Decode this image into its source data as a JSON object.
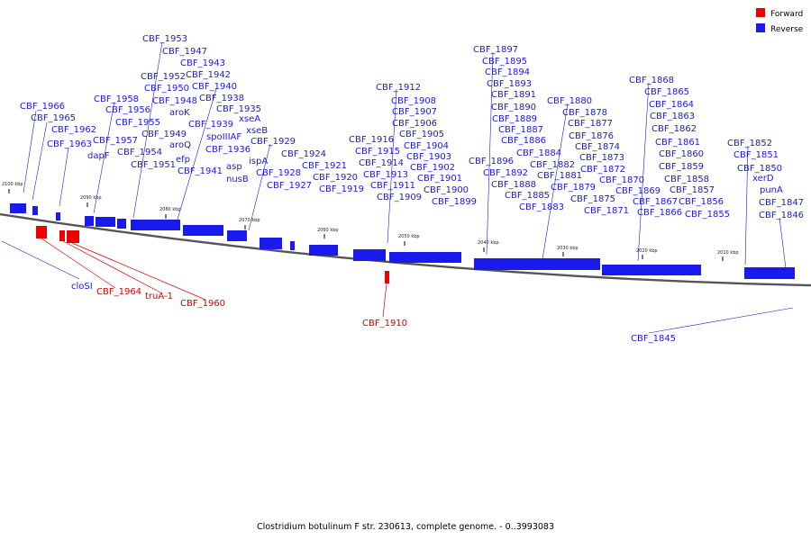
{
  "caption": "Clostridium botulinum F str. 230613, complete genome. - 0..3993083",
  "legend": [
    {
      "label": "Forward",
      "color": "#ee0000"
    },
    {
      "label": "Reverse",
      "color": "#1a1aee"
    }
  ],
  "ticks": [
    "2100 kbp",
    "2090 kbp",
    "2080 kbp",
    "2070 kbp",
    "2060 kbp",
    "2050 kbp",
    "2040 kbp",
    "2030 kbp",
    "2020 kbp",
    "2010 kbp"
  ],
  "reverse_labels": [
    "CBF_1966",
    "CBF_1965",
    "CBF_1962",
    "CBF_1963",
    "CBF_1958",
    "CBF_1956",
    "CBF_1955",
    "CBF_1957",
    "dapF",
    "CBF_1954",
    "CBF_1951",
    "CBF_1953",
    "CBF_1947",
    "CBF_1943",
    "CBF_1952",
    "CBF_1942",
    "CBF_1950",
    "CBF_1940",
    "CBF_1948",
    "CBF_1938",
    "aroK",
    "CBF_1935",
    "CBF_1949",
    "CBF_1939",
    "aroQ",
    "efp",
    "spoIIIAF",
    "CBF_1936",
    "CBF_1941",
    "asp",
    "nusB",
    "xseA",
    "xseB",
    "ispA",
    "CBF_1929",
    "CBF_1928",
    "CBF_1927",
    "CBF_1924",
    "CBF_1921",
    "CBF_1920",
    "CBF_1919",
    "CBF_1916",
    "CBF_1915",
    "CBF_1914",
    "CBF_1913",
    "CBF_1911",
    "CBF_1909",
    "CBF_1912",
    "CBF_1908",
    "CBF_1907",
    "CBF_1906",
    "CBF_1905",
    "CBF_1904",
    "CBF_1903",
    "CBF_1902",
    "CBF_1901",
    "CBF_1900",
    "CBF_1899",
    "CBF_1897",
    "CBF_1895",
    "CBF_1894",
    "CBF_1893",
    "CBF_1891",
    "CBF_1890",
    "CBF_1889",
    "CBF_1887",
    "CBF_1886",
    "CBF_1896",
    "CBF_1892",
    "CBF_1888",
    "CBF_1885",
    "CBF_1884",
    "CBF_1883",
    "CBF_1882",
    "CBF_1881",
    "CBF_1880",
    "CBF_1878",
    "CBF_1877",
    "CBF_1876",
    "CBF_1874",
    "CBF_1873",
    "CBF_1872",
    "CBF_1879",
    "CBF_1875",
    "CBF_1871",
    "CBF_1870",
    "CBF_1868",
    "CBF_1865",
    "CBF_1864",
    "CBF_1863",
    "CBF_1862",
    "CBF_1861",
    "CBF_1860",
    "CBF_1859",
    "CBF_1858",
    "CBF_1857",
    "CBF_1856",
    "CBF_1855",
    "CBF_1869",
    "CBF_1867",
    "CBF_1866",
    "CBF_1852",
    "CBF_1851",
    "CBF_1850",
    "xerD",
    "punA",
    "CBF_1847",
    "CBF_1846",
    "cloSI",
    "CBF_1845"
  ],
  "forward_labels": [
    "CBF_1964",
    "truA-1",
    "CBF_1960",
    "CBF_1910"
  ]
}
